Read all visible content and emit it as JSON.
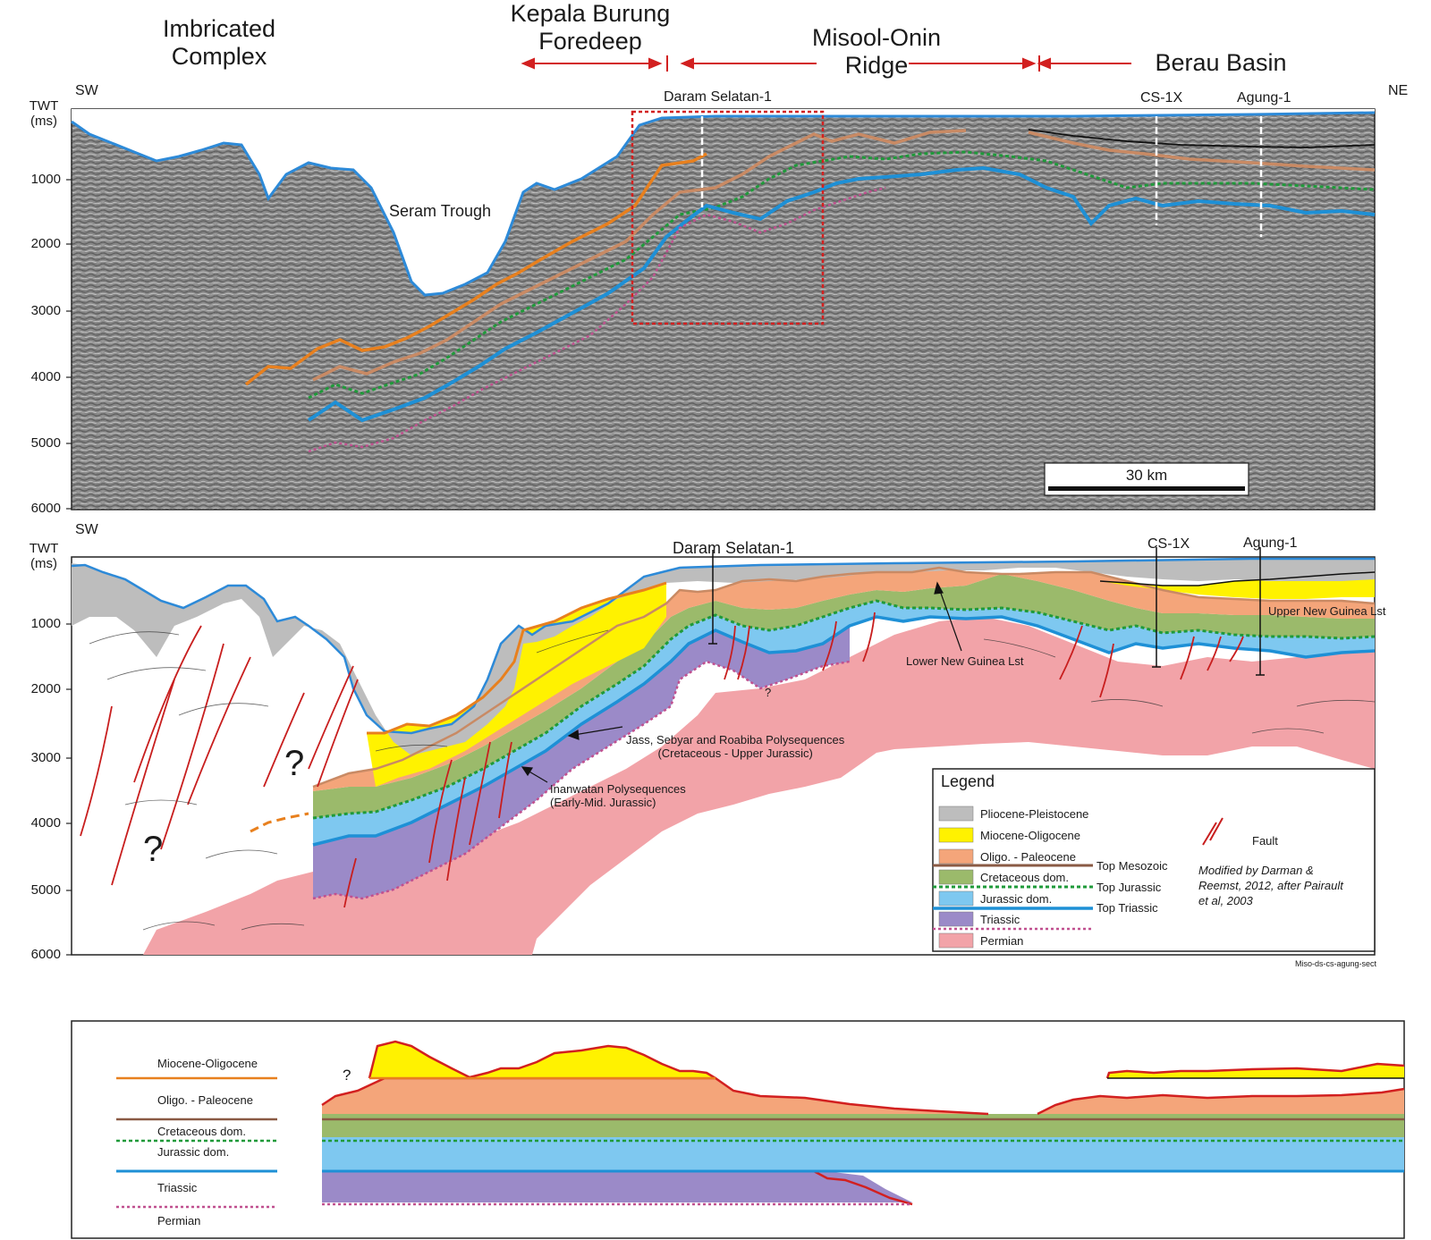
{
  "regions": {
    "imbricated": "Imbricated\nComplex",
    "kepala": "Kepala Burung\nForedeep",
    "misool": "Misool-Onin\nRidge",
    "berau": "Berau Basin"
  },
  "orientation": {
    "left": "SW",
    "right": "NE"
  },
  "axis": {
    "title_line1": "TWT",
    "title_line2": "(ms)",
    "ticks": [
      "1000",
      "2000",
      "3000",
      "4000",
      "5000",
      "6000"
    ]
  },
  "wells": {
    "daram": "Daram Selatan-1",
    "cs1x": "CS-1X",
    "agung": "Agung-1"
  },
  "seismic": {
    "trough_label": "Seram Trough",
    "scale_label": "30 km"
  },
  "section": {
    "unk": "?",
    "jass_line1": "Jass, Sebyar and Roabiba Polysequences",
    "jass_line2": "(Cretaceous - Upper Jurassic)",
    "inan_line1": "Inanwatan Polysequences",
    "inan_line2": "(Early-Mid. Jurassic)",
    "lower_ng": "Lower New Guinea Lst",
    "upper_ng": "Upper New Guinea Lst",
    "figure_id": "Miso-ds-cs-agung-sect"
  },
  "legend": {
    "title": "Legend",
    "units": [
      {
        "label": "Pliocene-Pleistocene",
        "color": "#bdbdbd"
      },
      {
        "label": "Miocene-Oligocene",
        "color": "#fff200"
      },
      {
        "label": "Oligo. - Paleocene",
        "color": "#f4a57a"
      },
      {
        "label": "Cretaceous dom.",
        "color": "#9bba6b"
      },
      {
        "label": "Jurassic dom.",
        "color": "#7ec8f0"
      },
      {
        "label": "Triassic",
        "color": "#9b8ac8"
      },
      {
        "label": "Permian",
        "color": "#f2a3a8"
      }
    ],
    "horizons": {
      "top_mesozoic": "Top Mesozoic",
      "top_jurassic": "Top Jurassic",
      "top_triassic": "Top Triassic"
    },
    "fault": "Fault",
    "credit_line1": "Modified by Darman &",
    "credit_line2": "Reemst, 2012, after Pairault",
    "credit_line3": "et al, 2003"
  },
  "wheeler": {
    "labels": [
      "Miocene-Oligocene",
      "Oligo. - Paleocene",
      "Cretaceous dom.",
      "Jurassic dom.",
      "Triassic",
      "Permian"
    ],
    "unk": "?"
  },
  "colors": {
    "miocene_horizon": "#e8801e",
    "oligo_horizon": "#c98a64",
    "top_jurassic": "#1f9a3a",
    "top_triassic": "#1e90d6",
    "permian_top": "#c0508f",
    "fault": "#c81e1e",
    "arrow": "#d22020"
  }
}
